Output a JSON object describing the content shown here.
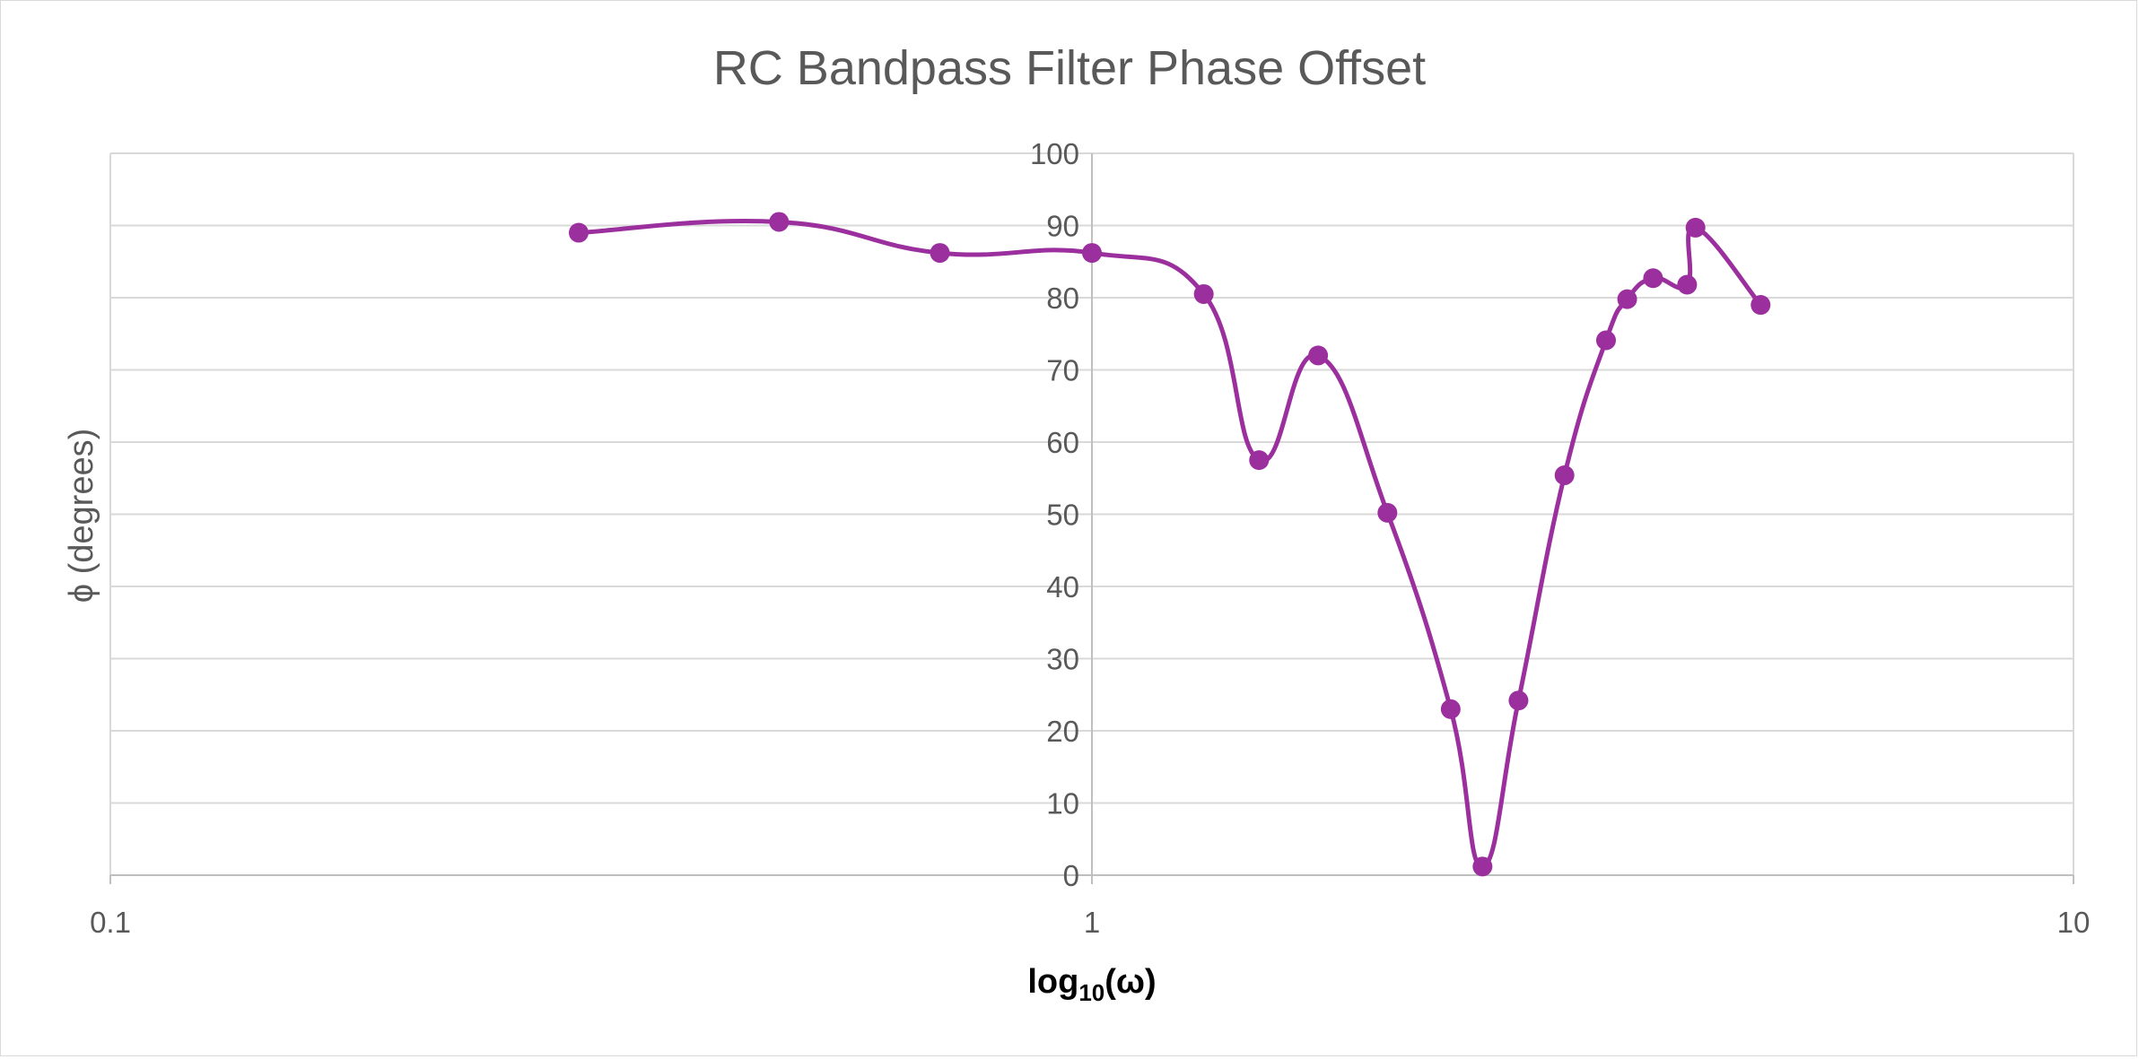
{
  "chart_data": {
    "type": "scatter",
    "title": "RC Bandpass Filter Phase Offset",
    "xlabel": {
      "base": "log",
      "subscript": "10",
      "rest": "(ω)"
    },
    "ylabel": "ϕ (degrees)",
    "x_scale": "log",
    "xlim": [
      0.1,
      10
    ],
    "ylim": [
      0,
      100
    ],
    "x_ticks": [
      "0.1",
      "1",
      "10"
    ],
    "y_ticks": [
      "0",
      "10",
      "20",
      "30",
      "40",
      "50",
      "60",
      "70",
      "80",
      "90",
      "100"
    ],
    "grid": "horizontal",
    "legend": "none",
    "series": [
      {
        "color": "#9b2f9e",
        "smooth": true,
        "x": [
          0.3,
          0.48,
          0.7,
          1.0,
          1.3,
          1.48,
          1.7,
          2.0,
          2.32,
          2.5,
          2.72,
          3.03,
          3.34,
          3.51,
          3.73,
          4.04,
          4.12,
          4.8
        ],
        "y": [
          89.0,
          90.5,
          86.2,
          86.2,
          80.5,
          57.5,
          72.0,
          50.2,
          23.0,
          1.2,
          24.2,
          55.4,
          74.1,
          79.8,
          82.7,
          81.8,
          89.7,
          79.0
        ]
      }
    ]
  }
}
